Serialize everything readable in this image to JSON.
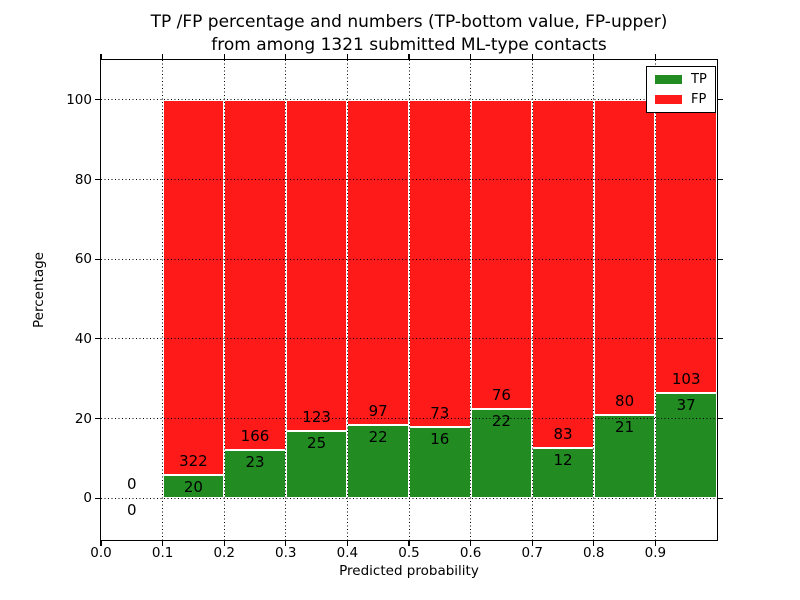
{
  "title": {
    "line1": "TP /FP percentage and numbers (TP-bottom value, FP-upper)",
    "line2": "from among 1321 submitted ML-type contacts"
  },
  "chart_data": {
    "type": "bar",
    "stacked": true,
    "title": "TP /FP percentage and numbers (TP-bottom value, FP-upper) from among 1321 submitted ML-type contacts",
    "xlabel": "Predicted probability",
    "ylabel": "Percentage",
    "xlim": [
      0.0,
      1.0
    ],
    "ylim": [
      -10.5,
      110
    ],
    "xticks": [
      0.0,
      0.1,
      0.2,
      0.3,
      0.4,
      0.5,
      0.6,
      0.7,
      0.8,
      0.9
    ],
    "yticks": [
      0,
      20,
      40,
      60,
      80,
      100
    ],
    "grid": {
      "visible": true,
      "style": "dotted",
      "color": "#000000"
    },
    "legend": {
      "position": "upper right",
      "entries": [
        {
          "label": "TP",
          "color": "#228B22"
        },
        {
          "label": "FP",
          "color": "#FF1A1A"
        }
      ]
    },
    "total_contacts": 1321,
    "bins": [
      {
        "x_start": 0.0,
        "x_end": 0.1,
        "tp": 0,
        "fp": 0,
        "tp_pct": 0
      },
      {
        "x_start": 0.1,
        "x_end": 0.2,
        "tp": 20,
        "fp": 322,
        "tp_pct": 5.85
      },
      {
        "x_start": 0.2,
        "x_end": 0.3,
        "tp": 23,
        "fp": 166,
        "tp_pct": 12.17
      },
      {
        "x_start": 0.3,
        "x_end": 0.4,
        "tp": 25,
        "fp": 123,
        "tp_pct": 16.89
      },
      {
        "x_start": 0.4,
        "x_end": 0.5,
        "tp": 22,
        "fp": 97,
        "tp_pct": 18.49
      },
      {
        "x_start": 0.5,
        "x_end": 0.6,
        "tp": 16,
        "fp": 73,
        "tp_pct": 17.98
      },
      {
        "x_start": 0.6,
        "x_end": 0.7,
        "tp": 22,
        "fp": 76,
        "tp_pct": 22.45
      },
      {
        "x_start": 0.7,
        "x_end": 0.8,
        "tp": 12,
        "fp": 83,
        "tp_pct": 12.63
      },
      {
        "x_start": 0.8,
        "x_end": 0.9,
        "tp": 21,
        "fp": 80,
        "tp_pct": 20.79
      },
      {
        "x_start": 0.9,
        "x_end": 1.0,
        "tp": 37,
        "fp": 103,
        "tp_pct": 26.43
      }
    ]
  },
  "colors": {
    "tp": "#228B22",
    "fp": "#FF1A1A",
    "background": "#FFFFFF",
    "axis": "#000000"
  }
}
